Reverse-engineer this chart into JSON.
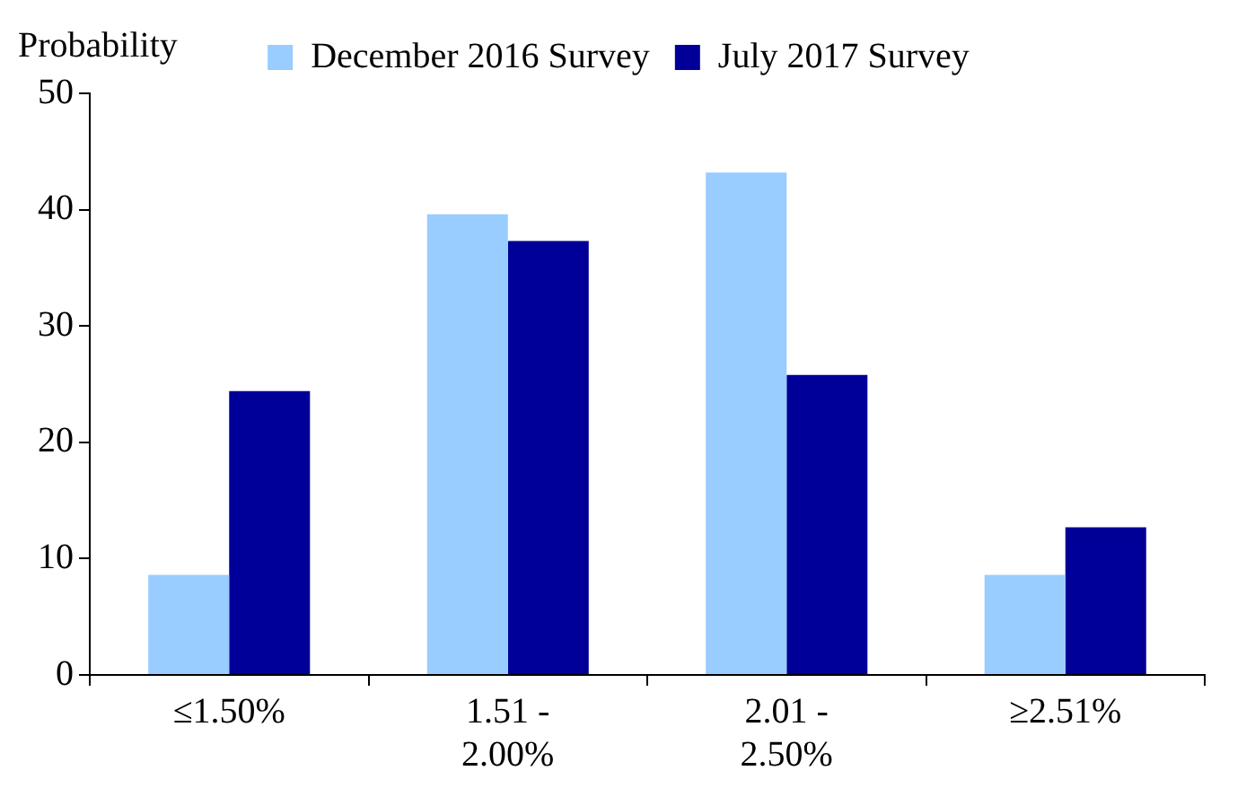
{
  "chart_data": {
    "type": "bar",
    "ylabel": "Probability",
    "categories": [
      "≤1.50%",
      "1.51 - 2.00%",
      "2.01 - 2.50%",
      "≥2.51%"
    ],
    "series": [
      {
        "name": "December 2016 Survey",
        "color": "#99ccff",
        "values": [
          8.6,
          39.6,
          43.2,
          8.6
        ]
      },
      {
        "name": "July 2017 Survey",
        "color": "#000099",
        "values": [
          24.4,
          37.3,
          25.8,
          12.7
        ]
      }
    ],
    "ylim": [
      0,
      50
    ],
    "yticks": [
      0,
      10,
      20,
      30,
      40,
      50
    ],
    "legend": "top"
  }
}
